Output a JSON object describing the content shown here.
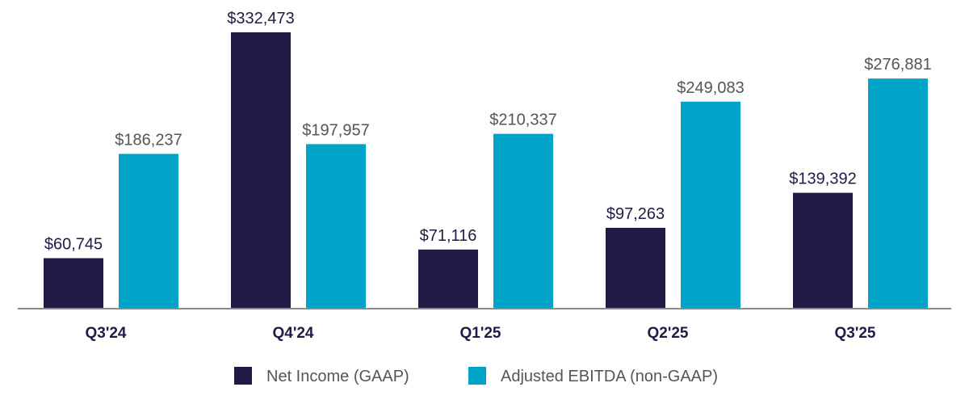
{
  "chart_data": {
    "type": "bar",
    "title": "",
    "xlabel": "",
    "ylabel": "",
    "categories": [
      "Q3'24",
      "Q4'24",
      "Q1'25",
      "Q2'25",
      "Q3'25"
    ],
    "series": [
      {
        "name": "Net Income (GAAP)",
        "color": "#221a46",
        "label_color": "#221a46",
        "values": [
          60745,
          332473,
          71116,
          97263,
          139392
        ],
        "labels": [
          "$60,745",
          "$332,473",
          "$71,116",
          "$97,263",
          "$139,392"
        ]
      },
      {
        "name": "Adjusted EBITDA (non-GAAP)",
        "color": "#00a3c8",
        "label_color": "#555555",
        "values": [
          186237,
          197957,
          210337,
          249083,
          276881
        ],
        "labels": [
          "$186,237",
          "$197,957",
          "$210,337",
          "$249,083",
          "$276,881"
        ]
      }
    ],
    "ylim": [
      0,
      332473
    ],
    "grid": false,
    "legend_position": "bottom-center",
    "axis_color": "#8a8a8a",
    "tick_color": "#221a46"
  }
}
